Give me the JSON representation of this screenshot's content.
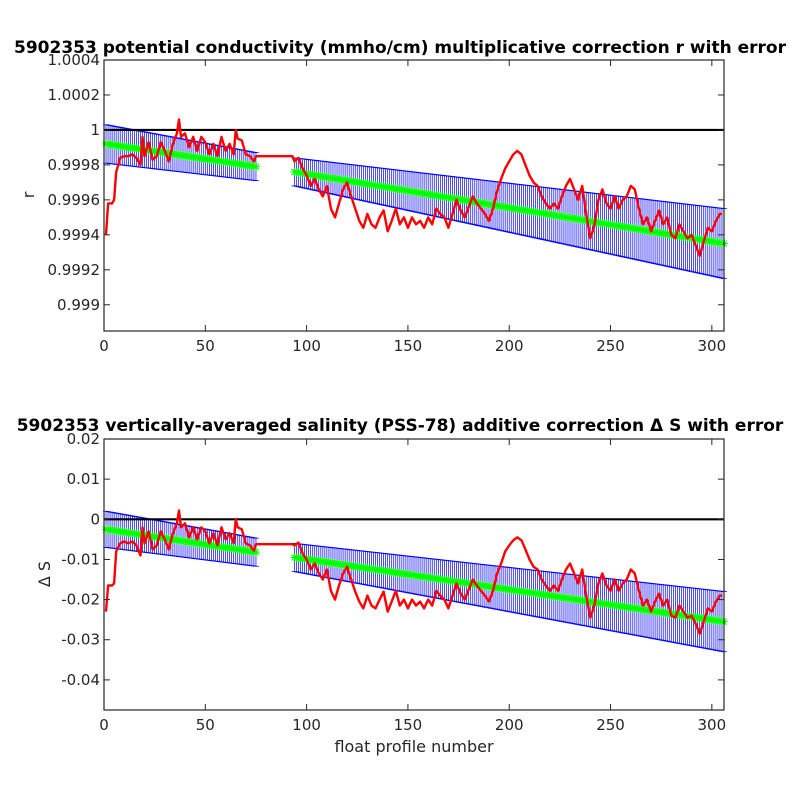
{
  "chart_data": [
    {
      "type": "line",
      "title": "5902353 potential conductivity (mmho/cm) multiplicative correction r with error",
      "xlabel": "",
      "ylabel": "r",
      "xlim": [
        0,
        306
      ],
      "ylim": [
        0.99885,
        1.0004
      ],
      "xticks": [
        0,
        50,
        100,
        150,
        200,
        250,
        300
      ],
      "yticks": [
        1.0004,
        1.0002,
        1,
        0.9998,
        0.9996,
        0.9994,
        0.9992,
        0.999
      ],
      "ytick_labels": [
        "1.0004",
        "1.0002",
        "1",
        "0.9998",
        "0.9996",
        "0.9994",
        "0.9992",
        "0.999"
      ],
      "reference_line": 1,
      "colors": {
        "raw": "#ff0000",
        "fit": "#00ff00",
        "error": "#0000ff",
        "reference": "#000000"
      },
      "fit_segments": [
        {
          "x_start": 1,
          "x_end": 75,
          "y_start": 0.99992,
          "y_end": 0.99979,
          "err_start": 0.00011,
          "err_end": 8e-05
        },
        {
          "x_start": 94,
          "x_end": 306,
          "y_start": 0.99976,
          "y_end": 0.99935,
          "err_start": 8e-05,
          "err_end": 0.0002
        }
      ],
      "raw_series": [
        [
          1,
          0.9994
        ],
        [
          2,
          0.99958
        ],
        [
          4,
          0.99958
        ],
        [
          5,
          0.9996
        ],
        [
          6,
          0.99976
        ],
        [
          8,
          0.99984
        ],
        [
          10,
          0.99985
        ],
        [
          12,
          0.99985
        ],
        [
          14,
          0.99986
        ],
        [
          16,
          0.99984
        ],
        [
          18,
          0.9998
        ],
        [
          19,
          0.99996
        ],
        [
          20,
          0.99985
        ],
        [
          22,
          0.99993
        ],
        [
          24,
          0.99983
        ],
        [
          26,
          0.99985
        ],
        [
          28,
          0.99993
        ],
        [
          30,
          0.99988
        ],
        [
          32,
          0.99982
        ],
        [
          34,
          0.99992
        ],
        [
          36,
          0.99998
        ],
        [
          37,
          1.00006
        ],
        [
          38,
          0.99996
        ],
        [
          40,
          0.99998
        ],
        [
          42,
          0.9999
        ],
        [
          44,
          0.99996
        ],
        [
          46,
          0.99988
        ],
        [
          48,
          0.99996
        ],
        [
          50,
          0.99993
        ],
        [
          52,
          0.99986
        ],
        [
          54,
          0.99992
        ],
        [
          56,
          0.99985
        ],
        [
          58,
          0.99996
        ],
        [
          60,
          0.99988
        ],
        [
          62,
          0.99992
        ],
        [
          64,
          0.99986
        ],
        [
          65,
          1.0
        ],
        [
          66,
          0.99995
        ],
        [
          68,
          0.99994
        ],
        [
          70,
          0.99986
        ],
        [
          72,
          0.99985
        ],
        [
          74,
          0.99982
        ],
        [
          75,
          0.99985
        ],
        [
          93,
          0.99985
        ],
        [
          94,
          0.99982
        ],
        [
          96,
          0.99984
        ],
        [
          98,
          0.99978
        ],
        [
          100,
          0.99974
        ],
        [
          102,
          0.99968
        ],
        [
          104,
          0.99972
        ],
        [
          106,
          0.99966
        ],
        [
          108,
          0.99962
        ],
        [
          110,
          0.99968
        ],
        [
          112,
          0.99955
        ],
        [
          114,
          0.9995
        ],
        [
          116,
          0.99958
        ],
        [
          118,
          0.99966
        ],
        [
          120,
          0.9997
        ],
        [
          122,
          0.99962
        ],
        [
          124,
          0.99955
        ],
        [
          126,
          0.99948
        ],
        [
          128,
          0.99944
        ],
        [
          130,
          0.99952
        ],
        [
          132,
          0.99946
        ],
        [
          134,
          0.99944
        ],
        [
          136,
          0.9995
        ],
        [
          138,
          0.99954
        ],
        [
          140,
          0.99942
        ],
        [
          142,
          0.99948
        ],
        [
          144,
          0.99955
        ],
        [
          146,
          0.99946
        ],
        [
          148,
          0.9995
        ],
        [
          150,
          0.99944
        ],
        [
          152,
          0.9995
        ],
        [
          154,
          0.99946
        ],
        [
          156,
          0.99948
        ],
        [
          158,
          0.99944
        ],
        [
          160,
          0.9995
        ],
        [
          162,
          0.99946
        ],
        [
          164,
          0.99955
        ],
        [
          166,
          0.99952
        ],
        [
          168,
          0.9995
        ],
        [
          170,
          0.99944
        ],
        [
          172,
          0.99952
        ],
        [
          174,
          0.9996
        ],
        [
          176,
          0.99954
        ],
        [
          178,
          0.9995
        ],
        [
          180,
          0.99956
        ],
        [
          182,
          0.99962
        ],
        [
          184,
          0.99958
        ],
        [
          186,
          0.99955
        ],
        [
          188,
          0.99952
        ],
        [
          190,
          0.99948
        ],
        [
          192,
          0.99955
        ],
        [
          194,
          0.99965
        ],
        [
          196,
          0.99972
        ],
        [
          198,
          0.99978
        ],
        [
          200,
          0.99982
        ],
        [
          202,
          0.99986
        ],
        [
          204,
          0.99988
        ],
        [
          206,
          0.99986
        ],
        [
          208,
          0.9998
        ],
        [
          210,
          0.99974
        ],
        [
          212,
          0.9997
        ],
        [
          214,
          0.99968
        ],
        [
          216,
          0.99962
        ],
        [
          218,
          0.99958
        ],
        [
          220,
          0.99955
        ],
        [
          222,
          0.99958
        ],
        [
          224,
          0.99955
        ],
        [
          226,
          0.99962
        ],
        [
          228,
          0.99968
        ],
        [
          230,
          0.99972
        ],
        [
          232,
          0.99966
        ],
        [
          234,
          0.9996
        ],
        [
          236,
          0.99968
        ],
        [
          238,
          0.99952
        ],
        [
          240,
          0.99938
        ],
        [
          242,
          0.99945
        ],
        [
          244,
          0.9996
        ],
        [
          246,
          0.99966
        ],
        [
          248,
          0.99958
        ],
        [
          250,
          0.99955
        ],
        [
          252,
          0.99962
        ],
        [
          254,
          0.99955
        ],
        [
          256,
          0.9996
        ],
        [
          258,
          0.99962
        ],
        [
          260,
          0.99968
        ],
        [
          262,
          0.99966
        ],
        [
          264,
          0.99955
        ],
        [
          266,
          0.99946
        ],
        [
          268,
          0.9995
        ],
        [
          270,
          0.99942
        ],
        [
          272,
          0.99948
        ],
        [
          274,
          0.99954
        ],
        [
          276,
          0.99946
        ],
        [
          278,
          0.9995
        ],
        [
          280,
          0.9994
        ],
        [
          282,
          0.99938
        ],
        [
          284,
          0.99946
        ],
        [
          286,
          0.99942
        ],
        [
          288,
          0.99938
        ],
        [
          290,
          0.9994
        ],
        [
          292,
          0.99934
        ],
        [
          294,
          0.99928
        ],
        [
          296,
          0.99936
        ],
        [
          298,
          0.99944
        ],
        [
          300,
          0.99942
        ],
        [
          302,
          0.99948
        ],
        [
          304,
          0.99952
        ],
        [
          305,
          0.99952
        ]
      ]
    },
    {
      "type": "line",
      "title": "5902353 vertically-averaged salinity (PSS-78) additive correction Δ S with error",
      "xlabel": "float profile number",
      "ylabel": "Δ S",
      "xlim": [
        0,
        306
      ],
      "ylim": [
        -0.0475,
        0.02
      ],
      "xticks": [
        0,
        50,
        100,
        150,
        200,
        250,
        300
      ],
      "yticks": [
        0.02,
        0.01,
        0,
        -0.01,
        -0.02,
        -0.03,
        -0.04
      ],
      "ytick_labels": [
        "0.02",
        "0.01",
        "0",
        "-0.01",
        "-0.02",
        "-0.03",
        "-0.04"
      ],
      "reference_line": 0,
      "colors": {
        "raw": "#ff0000",
        "fit": "#00ff00",
        "error": "#0000ff",
        "reference": "#000000"
      },
      "fit_segments": [
        {
          "x_start": 1,
          "x_end": 75,
          "y_start": -0.0025,
          "y_end": -0.0082,
          "err_start": 0.0045,
          "err_end": 0.0035
        },
        {
          "x_start": 94,
          "x_end": 306,
          "y_start": -0.0095,
          "y_end": -0.0255,
          "err_start": 0.0035,
          "err_end": 0.0075
        }
      ],
      "raw_series": [
        [
          1,
          -0.023
        ],
        [
          2,
          -0.0165
        ],
        [
          4,
          -0.0165
        ],
        [
          5,
          -0.016
        ],
        [
          6,
          -0.008
        ],
        [
          8,
          -0.006
        ],
        [
          10,
          -0.0055
        ],
        [
          12,
          -0.006
        ],
        [
          14,
          -0.0055
        ],
        [
          16,
          -0.0065
        ],
        [
          18,
          -0.009
        ],
        [
          19,
          -0.002
        ],
        [
          20,
          -0.006
        ],
        [
          22,
          -0.003
        ],
        [
          24,
          -0.0075
        ],
        [
          26,
          -0.0065
        ],
        [
          28,
          -0.003
        ],
        [
          30,
          -0.005
        ],
        [
          32,
          -0.0075
        ],
        [
          34,
          -0.0035
        ],
        [
          36,
          -0.001
        ],
        [
          37,
          0.0022
        ],
        [
          38,
          -0.002
        ],
        [
          40,
          -0.001
        ],
        [
          42,
          -0.0045
        ],
        [
          44,
          -0.002
        ],
        [
          46,
          -0.005
        ],
        [
          48,
          -0.002
        ],
        [
          50,
          -0.003
        ],
        [
          52,
          -0.006
        ],
        [
          54,
          -0.0035
        ],
        [
          56,
          -0.0065
        ],
        [
          58,
          -0.002
        ],
        [
          60,
          -0.005
        ],
        [
          62,
          -0.0035
        ],
        [
          64,
          -0.006
        ],
        [
          65,
          0.0
        ],
        [
          66,
          -0.002
        ],
        [
          68,
          -0.0025
        ],
        [
          70,
          -0.006
        ],
        [
          72,
          -0.0065
        ],
        [
          74,
          -0.0078
        ],
        [
          75,
          -0.0062
        ],
        [
          93,
          -0.0062
        ],
        [
          94,
          -0.0065
        ],
        [
          96,
          -0.0058
        ],
        [
          98,
          -0.0085
        ],
        [
          100,
          -0.01
        ],
        [
          102,
          -0.0125
        ],
        [
          104,
          -0.011
        ],
        [
          106,
          -0.0135
        ],
        [
          108,
          -0.015
        ],
        [
          110,
          -0.0125
        ],
        [
          112,
          -0.0178
        ],
        [
          114,
          -0.02
        ],
        [
          116,
          -0.0165
        ],
        [
          118,
          -0.0135
        ],
        [
          120,
          -0.0118
        ],
        [
          122,
          -0.015
        ],
        [
          124,
          -0.018
        ],
        [
          126,
          -0.0205
        ],
        [
          128,
          -0.0222
        ],
        [
          130,
          -0.019
        ],
        [
          132,
          -0.0215
        ],
        [
          134,
          -0.0222
        ],
        [
          136,
          -0.02
        ],
        [
          138,
          -0.018
        ],
        [
          140,
          -0.023
        ],
        [
          142,
          -0.0205
        ],
        [
          144,
          -0.0178
        ],
        [
          146,
          -0.0215
        ],
        [
          148,
          -0.02
        ],
        [
          150,
          -0.0222
        ],
        [
          152,
          -0.02
        ],
        [
          154,
          -0.0215
        ],
        [
          156,
          -0.0205
        ],
        [
          158,
          -0.0222
        ],
        [
          160,
          -0.02
        ],
        [
          162,
          -0.0215
        ],
        [
          164,
          -0.0178
        ],
        [
          166,
          -0.019
        ],
        [
          168,
          -0.02
        ],
        [
          170,
          -0.0222
        ],
        [
          172,
          -0.019
        ],
        [
          174,
          -0.016
        ],
        [
          176,
          -0.0185
        ],
        [
          178,
          -0.02
        ],
        [
          180,
          -0.0175
        ],
        [
          182,
          -0.015
        ],
        [
          184,
          -0.0165
        ],
        [
          186,
          -0.0178
        ],
        [
          188,
          -0.019
        ],
        [
          190,
          -0.0205
        ],
        [
          192,
          -0.0178
        ],
        [
          194,
          -0.0135
        ],
        [
          196,
          -0.011
        ],
        [
          198,
          -0.008
        ],
        [
          200,
          -0.0065
        ],
        [
          202,
          -0.0052
        ],
        [
          204,
          -0.0045
        ],
        [
          206,
          -0.0052
        ],
        [
          208,
          -0.0075
        ],
        [
          210,
          -0.01
        ],
        [
          212,
          -0.0118
        ],
        [
          214,
          -0.0125
        ],
        [
          216,
          -0.015
        ],
        [
          218,
          -0.0165
        ],
        [
          220,
          -0.0178
        ],
        [
          222,
          -0.0165
        ],
        [
          224,
          -0.0178
        ],
        [
          226,
          -0.015
        ],
        [
          228,
          -0.0125
        ],
        [
          230,
          -0.011
        ],
        [
          232,
          -0.0135
        ],
        [
          234,
          -0.016
        ],
        [
          236,
          -0.0125
        ],
        [
          238,
          -0.019
        ],
        [
          240,
          -0.0245
        ],
        [
          242,
          -0.0215
        ],
        [
          244,
          -0.016
        ],
        [
          246,
          -0.0135
        ],
        [
          248,
          -0.0165
        ],
        [
          250,
          -0.0178
        ],
        [
          252,
          -0.015
        ],
        [
          254,
          -0.0178
        ],
        [
          256,
          -0.016
        ],
        [
          258,
          -0.015
        ],
        [
          260,
          -0.0125
        ],
        [
          262,
          -0.0135
        ],
        [
          264,
          -0.0178
        ],
        [
          266,
          -0.0215
        ],
        [
          268,
          -0.02
        ],
        [
          270,
          -0.023
        ],
        [
          272,
          -0.0205
        ],
        [
          274,
          -0.0185
        ],
        [
          276,
          -0.0215
        ],
        [
          278,
          -0.02
        ],
        [
          280,
          -0.024
        ],
        [
          282,
          -0.0245
        ],
        [
          284,
          -0.0215
        ],
        [
          286,
          -0.023
        ],
        [
          288,
          -0.0245
        ],
        [
          290,
          -0.024
        ],
        [
          292,
          -0.026
        ],
        [
          294,
          -0.0285
        ],
        [
          296,
          -0.0255
        ],
        [
          298,
          -0.0222
        ],
        [
          300,
          -0.023
        ],
        [
          302,
          -0.0205
        ],
        [
          304,
          -0.019
        ],
        [
          305,
          -0.019
        ]
      ]
    }
  ]
}
